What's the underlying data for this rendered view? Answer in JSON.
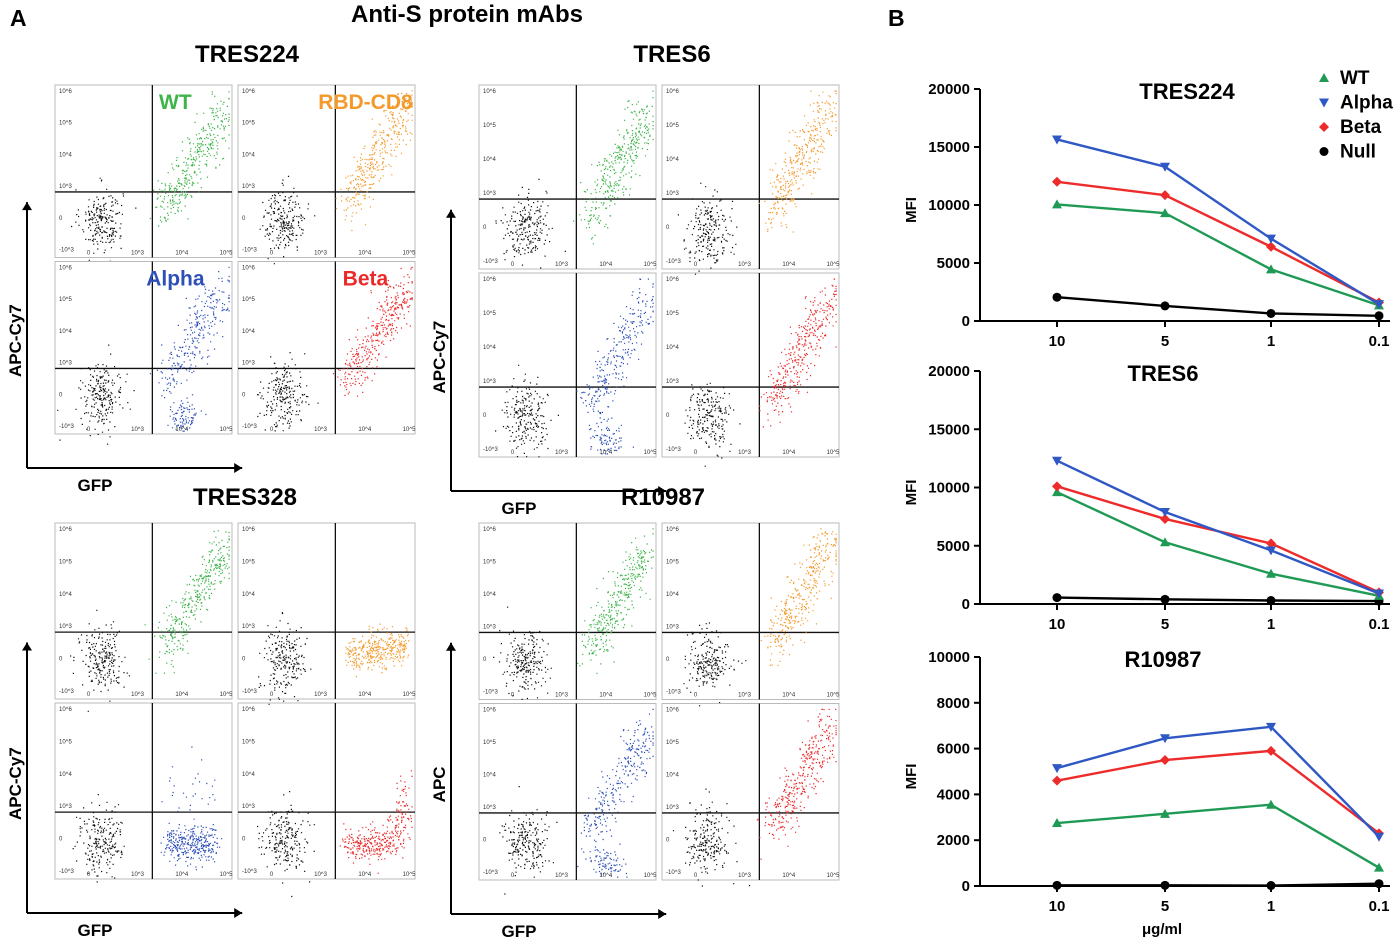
{
  "figure": {
    "panel_a_label": "A",
    "panel_b_label": "B",
    "panel_a_title": "Anti-S protein mAbs"
  },
  "flow_panels": [
    {
      "title": "TRES224",
      "y_axis_label": "APC-Cy7",
      "x_axis_label": "GFP",
      "subplots": [
        {
          "label": "WT",
          "color": "#3fb44a",
          "pattern": "diag",
          "shift": 0
        },
        {
          "label": "RBD-CD8",
          "color": "#f39a2b",
          "pattern": "diag",
          "shift": 0.6
        },
        {
          "label": "Alpha",
          "color": "#2e4fb8",
          "pattern": "diag_split",
          "shift": 0
        },
        {
          "label": "Beta",
          "color": "#ea2a2a",
          "pattern": "diag",
          "shift": 0.4
        }
      ]
    },
    {
      "title": "TRES6",
      "y_axis_label": "APC-Cy7",
      "x_axis_label": "GFP",
      "subplots": [
        {
          "label": "",
          "color": "#3fb44a",
          "pattern": "diag",
          "shift": 0
        },
        {
          "label": "",
          "color": "#f39a2b",
          "pattern": "diag",
          "shift": 0.6
        },
        {
          "label": "",
          "color": "#2e4fb8",
          "pattern": "diag_split",
          "shift": 0
        },
        {
          "label": "",
          "color": "#ea2a2a",
          "pattern": "diag",
          "shift": 0.4
        }
      ]
    },
    {
      "title": "TRES328",
      "y_axis_label": "APC-Cy7",
      "x_axis_label": "GFP",
      "subplots": [
        {
          "label": "",
          "color": "#3fb44a",
          "pattern": "diag",
          "shift": 0
        },
        {
          "label": "",
          "color": "#f39a2b",
          "pattern": "flat",
          "shift": 0.6
        },
        {
          "label": "",
          "color": "#2e4fb8",
          "pattern": "flat_low",
          "shift": 0
        },
        {
          "label": "",
          "color": "#ea2a2a",
          "pattern": "low_rise",
          "shift": 0.4
        }
      ]
    },
    {
      "title": "R10987",
      "y_axis_label": "APC",
      "x_axis_label": "GFP",
      "subplots": [
        {
          "label": "",
          "color": "#3fb44a",
          "pattern": "diag",
          "shift": 0
        },
        {
          "label": "",
          "color": "#f39a2b",
          "pattern": "diag",
          "shift": 0.6
        },
        {
          "label": "",
          "color": "#2e4fb8",
          "pattern": "diag_split",
          "shift": 0
        },
        {
          "label": "",
          "color": "#ea2a2a",
          "pattern": "diag",
          "shift": 0.4
        }
      ]
    }
  ],
  "flow_tick_labels": {
    "y": [
      "10^6",
      "10^5",
      "10^4",
      "10^3",
      "0",
      "-10^3"
    ],
    "x": [
      "0",
      "10^3",
      "10^4",
      "10^5"
    ]
  },
  "chart_data": [
    {
      "type": "line",
      "title": "TRES224",
      "xlabel": "",
      "ylabel": "MFI",
      "categories": [
        "10",
        "5",
        "1",
        "0.1"
      ],
      "ylim": [
        0,
        20000
      ],
      "yticks": [
        0,
        5000,
        10000,
        15000,
        20000
      ],
      "series": [
        {
          "name": "WT",
          "color": "#1f9a55",
          "marker": "triangle-up",
          "values": [
            10050,
            9300,
            4450,
            1350
          ]
        },
        {
          "name": "Alpha",
          "color": "#2f58c4",
          "marker": "triangle-down",
          "values": [
            15650,
            13300,
            7100,
            1450
          ]
        },
        {
          "name": "Beta",
          "color": "#ee2b2b",
          "marker": "diamond",
          "values": [
            12000,
            10850,
            6400,
            1600
          ]
        },
        {
          "name": "Null",
          "color": "#000000",
          "marker": "circle",
          "values": [
            2050,
            1300,
            650,
            450
          ]
        }
      ]
    },
    {
      "type": "line",
      "title": "TRES6",
      "xlabel": "",
      "ylabel": "MFI",
      "categories": [
        "10",
        "5",
        "1",
        "0.1"
      ],
      "ylim": [
        0,
        20000
      ],
      "yticks": [
        0,
        5000,
        10000,
        15000,
        20000
      ],
      "series": [
        {
          "name": "WT",
          "color": "#1f9a55",
          "marker": "triangle-up",
          "values": [
            9600,
            5300,
            2600,
            700
          ]
        },
        {
          "name": "Alpha",
          "color": "#2f58c4",
          "marker": "triangle-down",
          "values": [
            12300,
            7900,
            4600,
            900
          ]
        },
        {
          "name": "Beta",
          "color": "#ee2b2b",
          "marker": "diamond",
          "values": [
            10100,
            7300,
            5200,
            1000
          ]
        },
        {
          "name": "Null",
          "color": "#000000",
          "marker": "circle",
          "values": [
            550,
            400,
            300,
            250
          ]
        }
      ]
    },
    {
      "type": "line",
      "title": "R10987",
      "xlabel": "μg/ml",
      "ylabel": "MFI",
      "categories": [
        "10",
        "5",
        "1",
        "0.1"
      ],
      "ylim": [
        0,
        10000
      ],
      "yticks": [
        0,
        2000,
        4000,
        6000,
        8000,
        10000
      ],
      "series": [
        {
          "name": "WT",
          "color": "#1f9a55",
          "marker": "triangle-up",
          "values": [
            2750,
            3150,
            3550,
            800
          ]
        },
        {
          "name": "Alpha",
          "color": "#2f58c4",
          "marker": "triangle-down",
          "values": [
            5150,
            6450,
            6950,
            2150
          ]
        },
        {
          "name": "Beta",
          "color": "#ee2b2b",
          "marker": "diamond",
          "values": [
            4600,
            5500,
            5900,
            2300
          ]
        },
        {
          "name": "Null",
          "color": "#000000",
          "marker": "circle",
          "values": [
            30,
            30,
            20,
            100
          ]
        }
      ]
    }
  ],
  "legend": [
    {
      "name": "WT",
      "color": "#1f9a55",
      "marker": "triangle-up"
    },
    {
      "name": "Alpha",
      "color": "#2f58c4",
      "marker": "triangle-down"
    },
    {
      "name": "Beta",
      "color": "#ee2b2b",
      "marker": "diamond"
    },
    {
      "name": "Null",
      "color": "#000000",
      "marker": "circle"
    }
  ]
}
